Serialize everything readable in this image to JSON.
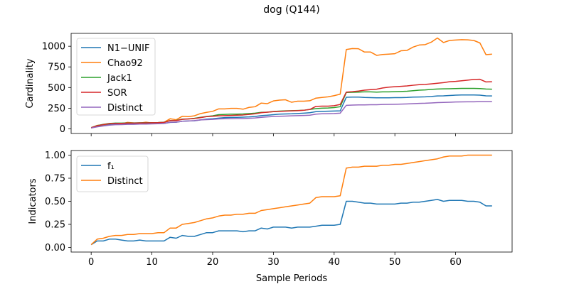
{
  "figure": {
    "title": "dog (Q144)",
    "xlabel": "Sample Periods"
  },
  "chart_data": [
    {
      "type": "line",
      "ylabel": "Cardinality",
      "xlim": [
        -3.3,
        69.3
      ],
      "ylim": [
        -56,
        1156
      ],
      "xticks": [
        0,
        10,
        20,
        30,
        40,
        50,
        60
      ],
      "yticks": [
        0,
        250,
        500,
        750,
        1000
      ],
      "ytick_labels": [
        "0",
        "250",
        "500",
        "750",
        "1000"
      ],
      "grid": false,
      "legend": "top-left",
      "series": [
        {
          "name": "N1−UNIF",
          "color": "#1f77b4",
          "values": [
            12,
            30,
            42,
            50,
            55,
            58,
            60,
            60,
            62,
            62,
            63,
            64,
            65,
            78,
            80,
            92,
            96,
            98,
            108,
            118,
            122,
            130,
            136,
            138,
            140,
            142,
            145,
            150,
            160,
            165,
            172,
            178,
            180,
            182,
            186,
            190,
            195,
            208,
            212,
            214,
            216,
            218,
            382,
            385,
            385,
            380,
            378,
            376,
            376,
            376,
            378,
            378,
            380,
            384,
            386,
            388,
            392,
            398,
            400,
            404,
            408,
            410,
            410,
            410,
            408,
            400,
            398
          ]
        },
        {
          "name": "Chao92",
          "color": "#ff7f0e",
          "values": [
            12,
            42,
            50,
            62,
            68,
            62,
            78,
            72,
            70,
            80,
            72,
            75,
            80,
            122,
            110,
            152,
            148,
            158,
            185,
            200,
            212,
            242,
            242,
            248,
            248,
            238,
            260,
            268,
            312,
            305,
            338,
            348,
            352,
            322,
            335,
            335,
            340,
            372,
            380,
            388,
            402,
            420,
            960,
            972,
            970,
            930,
            930,
            890,
            900,
            905,
            910,
            945,
            950,
            990,
            1015,
            1020,
            1050,
            1100,
            1045,
            1070,
            1075,
            1080,
            1078,
            1070,
            1040,
            898,
            905
          ]
        },
        {
          "name": "Jack1",
          "color": "#2ca02c",
          "values": [
            15,
            40,
            55,
            65,
            70,
            70,
            72,
            72,
            74,
            74,
            75,
            76,
            80,
            100,
            102,
            118,
            120,
            128,
            140,
            150,
            158,
            172,
            175,
            178,
            178,
            180,
            185,
            190,
            200,
            202,
            210,
            215,
            218,
            220,
            222,
            225,
            235,
            245,
            250,
            252,
            258,
            268,
            440,
            442,
            445,
            448,
            448,
            445,
            448,
            448,
            450,
            452,
            455,
            462,
            468,
            472,
            478,
            482,
            484,
            486,
            488,
            490,
            490,
            490,
            488,
            482,
            480
          ]
        },
        {
          "name": "SOR",
          "color": "#d62728",
          "values": [
            14,
            38,
            52,
            62,
            66,
            66,
            70,
            70,
            72,
            72,
            74,
            75,
            78,
            100,
            100,
            115,
            120,
            125,
            135,
            148,
            152,
            158,
            160,
            162,
            165,
            168,
            175,
            182,
            195,
            202,
            208,
            212,
            215,
            218,
            220,
            225,
            235,
            272,
            275,
            275,
            280,
            295,
            445,
            450,
            458,
            468,
            475,
            480,
            495,
            505,
            510,
            515,
            520,
            528,
            535,
            538,
            545,
            552,
            560,
            570,
            575,
            582,
            590,
            598,
            600,
            568,
            570
          ]
        },
        {
          "name": "Distinct",
          "color": "#9467bd",
          "values": [
            10,
            25,
            35,
            45,
            50,
            52,
            55,
            55,
            58,
            58,
            60,
            62,
            65,
            80,
            82,
            92,
            95,
            100,
            108,
            112,
            115,
            120,
            122,
            122,
            125,
            125,
            128,
            132,
            140,
            145,
            150,
            152,
            155,
            158,
            160,
            162,
            165,
            178,
            182,
            184,
            186,
            190,
            285,
            288,
            290,
            290,
            292,
            292,
            295,
            296,
            298,
            300,
            302,
            305,
            308,
            310,
            314,
            318,
            320,
            322,
            325,
            326,
            328,
            328,
            330,
            330,
            330
          ]
        }
      ]
    },
    {
      "type": "line",
      "ylabel": "Indicators",
      "xlim": [
        -3.3,
        69.3
      ],
      "ylim": [
        -0.05,
        1.05
      ],
      "xticks": [
        0,
        10,
        20,
        30,
        40,
        50,
        60
      ],
      "yticks": [
        0,
        0.25,
        0.5,
        0.75,
        1.0
      ],
      "ytick_labels": [
        "0.00",
        "0.25",
        "0.50",
        "0.75",
        "1.00"
      ],
      "grid": false,
      "legend": "top-left",
      "series": [
        {
          "name": "f₁",
          "color": "#1f77b4",
          "values": [
            0.03,
            0.07,
            0.07,
            0.09,
            0.09,
            0.08,
            0.07,
            0.07,
            0.08,
            0.07,
            0.07,
            0.07,
            0.07,
            0.11,
            0.1,
            0.13,
            0.12,
            0.12,
            0.14,
            0.16,
            0.16,
            0.18,
            0.18,
            0.18,
            0.18,
            0.17,
            0.18,
            0.18,
            0.21,
            0.2,
            0.22,
            0.22,
            0.22,
            0.21,
            0.22,
            0.22,
            0.22,
            0.23,
            0.24,
            0.24,
            0.24,
            0.25,
            0.5,
            0.5,
            0.49,
            0.48,
            0.48,
            0.47,
            0.47,
            0.47,
            0.47,
            0.48,
            0.48,
            0.49,
            0.49,
            0.5,
            0.51,
            0.52,
            0.5,
            0.51,
            0.51,
            0.51,
            0.5,
            0.5,
            0.49,
            0.45,
            0.45
          ]
        },
        {
          "name": "Distinct",
          "color": "#ff7f0e",
          "values": [
            0.03,
            0.09,
            0.1,
            0.12,
            0.13,
            0.13,
            0.14,
            0.14,
            0.15,
            0.15,
            0.15,
            0.16,
            0.16,
            0.21,
            0.21,
            0.25,
            0.26,
            0.27,
            0.29,
            0.31,
            0.32,
            0.34,
            0.35,
            0.35,
            0.36,
            0.36,
            0.37,
            0.37,
            0.4,
            0.41,
            0.42,
            0.43,
            0.44,
            0.45,
            0.46,
            0.47,
            0.48,
            0.54,
            0.55,
            0.55,
            0.55,
            0.56,
            0.86,
            0.87,
            0.87,
            0.88,
            0.88,
            0.88,
            0.89,
            0.89,
            0.9,
            0.9,
            0.91,
            0.92,
            0.93,
            0.94,
            0.95,
            0.96,
            0.98,
            0.99,
            0.99,
            0.99,
            1.0,
            1.0,
            1.0,
            1.0,
            1.0
          ]
        }
      ]
    }
  ]
}
